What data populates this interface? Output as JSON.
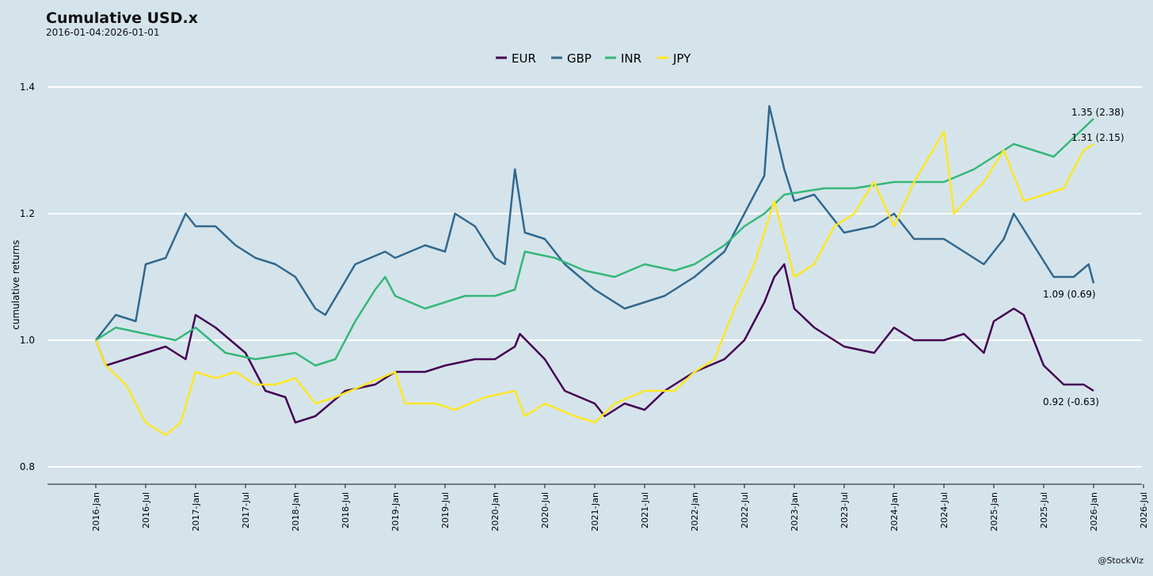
{
  "chart_data": {
    "type": "line",
    "title": "Cumulative USD.x",
    "subtitle": "2016-01-04:2026-01-01",
    "xlabel": "",
    "ylabel": "cumulative returns",
    "ylim": [
      0.77,
      1.43
    ],
    "xlim": [
      2015.5,
      2026.5
    ],
    "yticks": [
      0.8,
      1.0,
      1.2,
      1.4
    ],
    "ytick_labels": [
      "0.8",
      "1.0",
      "1.2",
      "1.4"
    ],
    "xtick_labels": [
      "2016-Jan",
      "2016-Jul",
      "2017-Jan",
      "2017-Jul",
      "2018-Jan",
      "2018-Jul",
      "2019-Jan",
      "2019-Jul",
      "2020-Jan",
      "2020-Jul",
      "2021-Jan",
      "2021-Jul",
      "2022-Jan",
      "2022-Jul",
      "2023-Jan",
      "2023-Jul",
      "2024-Jan",
      "2024-Jul",
      "2025-Jan",
      "2025-Jul",
      "2026-Jan",
      "2026-Jul"
    ],
    "legend_position": "top-center",
    "grid": "horizontal",
    "series": [
      {
        "name": "EUR",
        "color": "#440154",
        "end_label": "0.92 (-0.63)",
        "x": [
          2016.0,
          2016.1,
          2016.3,
          2016.5,
          2016.7,
          2016.9,
          2017.0,
          2017.2,
          2017.5,
          2017.7,
          2017.9,
          2018.0,
          2018.2,
          2018.5,
          2018.8,
          2019.0,
          2019.3,
          2019.5,
          2019.8,
          2020.0,
          2020.2,
          2020.25,
          2020.5,
          2020.7,
          2021.0,
          2021.1,
          2021.3,
          2021.5,
          2021.7,
          2022.0,
          2022.3,
          2022.5,
          2022.7,
          2022.8,
          2022.9,
          2023.0,
          2023.2,
          2023.5,
          2023.8,
          2024.0,
          2024.2,
          2024.5,
          2024.7,
          2024.9,
          2025.0,
          2025.2,
          2025.3,
          2025.5,
          2025.7,
          2025.9,
          2026.0
        ],
        "y": [
          1.0,
          0.96,
          0.97,
          0.98,
          0.99,
          0.97,
          1.04,
          1.02,
          0.98,
          0.92,
          0.91,
          0.87,
          0.88,
          0.92,
          0.93,
          0.95,
          0.95,
          0.96,
          0.97,
          0.97,
          0.99,
          1.01,
          0.97,
          0.92,
          0.9,
          0.88,
          0.9,
          0.89,
          0.92,
          0.95,
          0.97,
          1.0,
          1.06,
          1.1,
          1.12,
          1.05,
          1.02,
          0.99,
          0.98,
          1.02,
          1.0,
          1.0,
          1.01,
          0.98,
          1.03,
          1.05,
          1.04,
          0.96,
          0.93,
          0.93,
          0.92
        ]
      },
      {
        "name": "GBP",
        "color": "#31688e",
        "end_label": "1.09 (0.69)",
        "x": [
          2016.0,
          2016.2,
          2016.4,
          2016.5,
          2016.7,
          2016.9,
          2017.0,
          2017.2,
          2017.4,
          2017.6,
          2017.8,
          2018.0,
          2018.2,
          2018.3,
          2018.6,
          2018.9,
          2019.0,
          2019.3,
          2019.5,
          2019.6,
          2019.8,
          2020.0,
          2020.1,
          2020.2,
          2020.3,
          2020.5,
          2020.7,
          2021.0,
          2021.3,
          2021.5,
          2021.7,
          2022.0,
          2022.3,
          2022.5,
          2022.7,
          2022.75,
          2022.9,
          2023.0,
          2023.2,
          2023.5,
          2023.8,
          2024.0,
          2024.2,
          2024.5,
          2024.7,
          2024.9,
          2025.1,
          2025.2,
          2025.4,
          2025.6,
          2025.8,
          2025.95,
          2026.0
        ],
        "y": [
          1.0,
          1.04,
          1.03,
          1.12,
          1.13,
          1.2,
          1.18,
          1.18,
          1.15,
          1.13,
          1.12,
          1.1,
          1.05,
          1.04,
          1.12,
          1.14,
          1.13,
          1.15,
          1.14,
          1.2,
          1.18,
          1.13,
          1.12,
          1.27,
          1.17,
          1.16,
          1.12,
          1.08,
          1.05,
          1.06,
          1.07,
          1.1,
          1.14,
          1.2,
          1.26,
          1.37,
          1.27,
          1.22,
          1.23,
          1.17,
          1.18,
          1.2,
          1.16,
          1.16,
          1.14,
          1.12,
          1.16,
          1.2,
          1.15,
          1.1,
          1.1,
          1.12,
          1.09
        ]
      },
      {
        "name": "INR",
        "color": "#35b779",
        "end_label": "1.35 (2.38)",
        "x": [
          2016.0,
          2016.2,
          2016.5,
          2016.8,
          2017.0,
          2017.3,
          2017.6,
          2018.0,
          2018.2,
          2018.4,
          2018.6,
          2018.8,
          2018.9,
          2019.0,
          2019.3,
          2019.5,
          2019.7,
          2020.0,
          2020.2,
          2020.3,
          2020.6,
          2020.9,
          2021.2,
          2021.5,
          2021.8,
          2022.0,
          2022.3,
          2022.5,
          2022.7,
          2022.9,
          2023.3,
          2023.6,
          2024.0,
          2024.5,
          2024.8,
          2025.0,
          2025.2,
          2025.4,
          2025.6,
          2025.8,
          2026.0
        ],
        "y": [
          1.0,
          1.02,
          1.01,
          1.0,
          1.02,
          0.98,
          0.97,
          0.98,
          0.96,
          0.97,
          1.03,
          1.08,
          1.1,
          1.07,
          1.05,
          1.06,
          1.07,
          1.07,
          1.08,
          1.14,
          1.13,
          1.11,
          1.1,
          1.12,
          1.11,
          1.12,
          1.15,
          1.18,
          1.2,
          1.23,
          1.24,
          1.24,
          1.25,
          1.25,
          1.27,
          1.29,
          1.31,
          1.3,
          1.29,
          1.32,
          1.35
        ]
      },
      {
        "name": "JPY",
        "color": "#fde725",
        "end_label": "1.31 (2.15)",
        "x": [
          2016.0,
          2016.1,
          2016.3,
          2016.5,
          2016.7,
          2016.85,
          2017.0,
          2017.2,
          2017.4,
          2017.6,
          2017.8,
          2018.0,
          2018.2,
          2018.4,
          2018.7,
          2019.0,
          2019.1,
          2019.4,
          2019.6,
          2019.9,
          2020.2,
          2020.3,
          2020.5,
          2020.8,
          2021.0,
          2021.2,
          2021.5,
          2021.8,
          2022.0,
          2022.2,
          2022.4,
          2022.6,
          2022.8,
          2023.0,
          2023.2,
          2023.4,
          2023.6,
          2023.8,
          2024.0,
          2024.2,
          2024.5,
          2024.6,
          2024.9,
          2025.1,
          2025.3,
          2025.5,
          2025.7,
          2025.9,
          2026.0
        ],
        "y": [
          1.0,
          0.96,
          0.93,
          0.87,
          0.85,
          0.87,
          0.95,
          0.94,
          0.95,
          0.93,
          0.93,
          0.94,
          0.9,
          0.91,
          0.93,
          0.95,
          0.9,
          0.9,
          0.89,
          0.91,
          0.92,
          0.88,
          0.9,
          0.88,
          0.87,
          0.9,
          0.92,
          0.92,
          0.95,
          0.97,
          1.05,
          1.12,
          1.22,
          1.1,
          1.12,
          1.18,
          1.2,
          1.25,
          1.18,
          1.25,
          1.33,
          1.2,
          1.25,
          1.3,
          1.22,
          1.23,
          1.24,
          1.3,
          1.31
        ]
      }
    ]
  },
  "credit": "@StockViz"
}
